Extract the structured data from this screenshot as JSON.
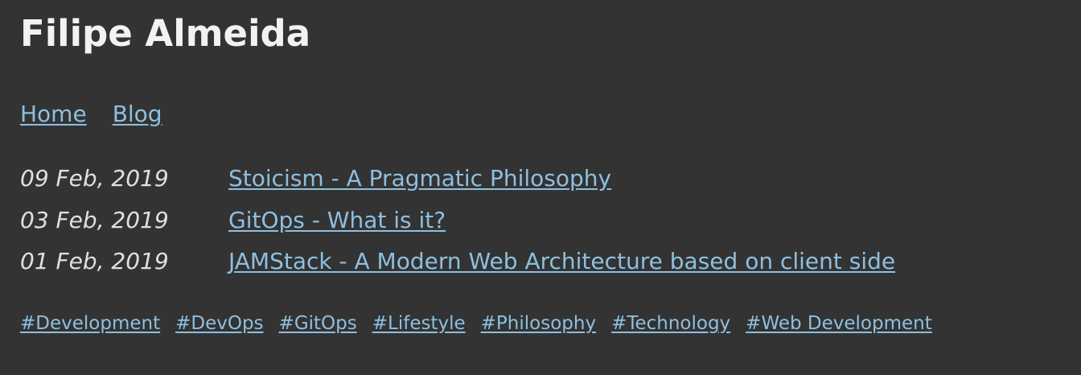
{
  "site": {
    "title": "Filipe Almeida"
  },
  "nav": [
    {
      "label": "Home"
    },
    {
      "label": "Blog"
    }
  ],
  "posts": [
    {
      "date": "09 Feb, 2019",
      "title": "Stoicism - A Pragmatic Philosophy"
    },
    {
      "date": "03 Feb, 2019",
      "title": "GitOps - What is it?"
    },
    {
      "date": "01 Feb, 2019",
      "title": "JAMStack - A Modern Web Architecture based on client side"
    }
  ],
  "tags": [
    "#Development",
    "#DevOps",
    "#GitOps",
    "#Lifestyle",
    "#Philosophy",
    "#Technology",
    "#Web Development"
  ],
  "colors": {
    "background": "#333333",
    "link": "#8ebfe0",
    "text": "#e6e6e6"
  }
}
